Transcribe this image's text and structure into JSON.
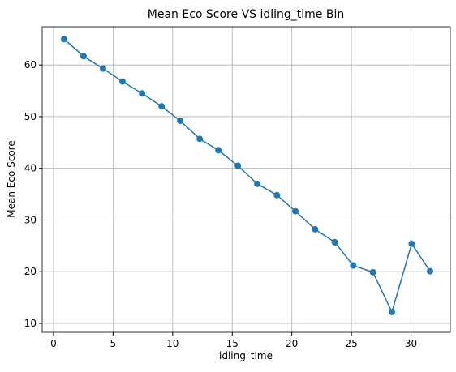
{
  "chart_data": {
    "type": "line",
    "title": "Mean Eco Score VS idling_time Bin",
    "x_label": "idling_time",
    "y_label": "Mean Eco Score",
    "x": [
      0.89,
      2.52,
      4.16,
      5.79,
      7.43,
      9.07,
      10.63,
      12.27,
      13.84,
      15.47,
      17.1,
      18.75,
      20.3,
      21.95,
      23.6,
      25.15,
      26.8,
      28.4,
      30.06,
      31.6
    ],
    "series": [
      {
        "name": "Mean Eco Score",
        "color": "#1f77b4",
        "values": [
          65,
          61.7,
          59.3,
          56.8,
          54.5,
          52,
          49.2,
          45.7,
          43.5,
          40.5,
          37,
          34.8,
          31.7,
          28.2,
          25.7,
          21.2,
          19.9,
          12.2,
          25.4,
          20.1
        ]
      }
    ],
    "xlim": [
      -0.95,
      33.3
    ],
    "ylim": [
      8.27,
      67.4
    ],
    "xticks": [
      0,
      5,
      10,
      15,
      20,
      25,
      30
    ],
    "yticks": [
      10,
      20,
      30,
      40,
      50,
      60
    ],
    "grid": true
  }
}
